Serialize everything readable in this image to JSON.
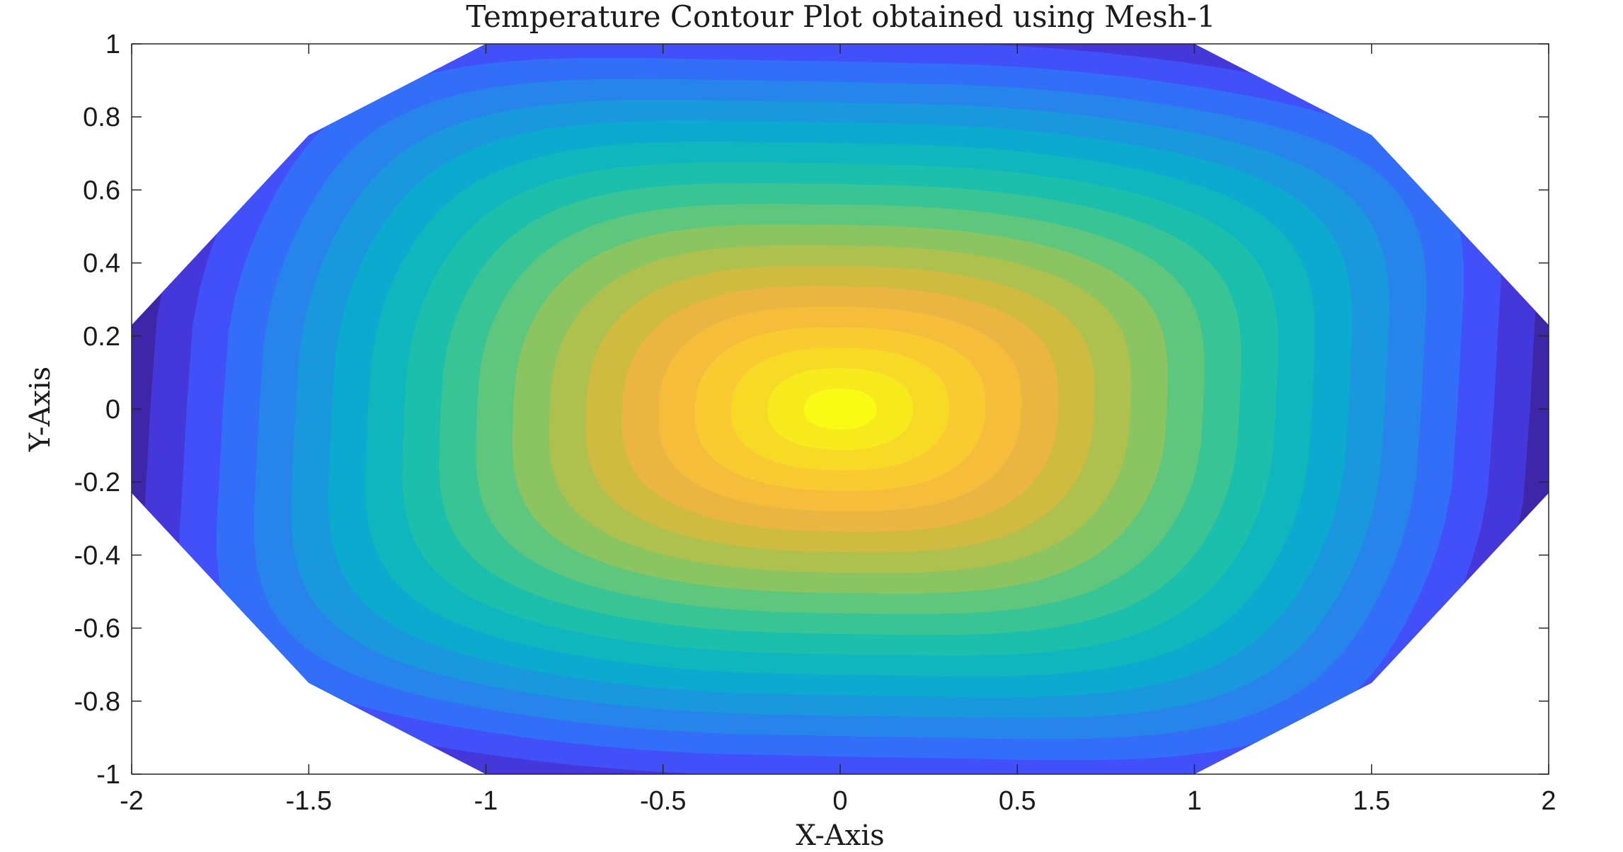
{
  "chart_data": {
    "type": "contour",
    "title": "Temperature Contour Plot obtained using Mesh-1",
    "xlabel": "X-Axis",
    "ylabel": "Y-Axis",
    "xlim": [
      -2,
      2
    ],
    "ylim": [
      -1,
      1
    ],
    "x_ticks": [
      -2,
      -1.5,
      -1,
      -0.5,
      0,
      0.5,
      1,
      1.5,
      2
    ],
    "y_ticks": [
      -1,
      -0.8,
      -0.6,
      -0.4,
      -0.2,
      0,
      0.2,
      0.4,
      0.6,
      0.8,
      1
    ],
    "x_tick_labels": [
      "-2",
      "-1.5",
      "-1",
      "-0.5",
      "0",
      "0.5",
      "1",
      "1.5",
      "2"
    ],
    "y_tick_labels": [
      "-1",
      "-0.8",
      "-0.6",
      "-0.4",
      "-0.2",
      "0",
      "0.2",
      "0.4",
      "0.6",
      "0.8",
      "1"
    ],
    "domain_boundary": [
      [
        -1,
        1
      ],
      [
        1,
        1
      ],
      [
        1.5,
        0.75
      ],
      [
        2,
        0.23
      ],
      [
        2,
        -0.23
      ],
      [
        1.5,
        -0.75
      ],
      [
        1,
        -1
      ],
      [
        -1,
        -1
      ],
      [
        -1.5,
        -0.75
      ],
      [
        -2,
        -0.23
      ],
      [
        -2,
        0.23
      ],
      [
        -1.5,
        0.75
      ]
    ],
    "peak_location": [
      0,
      0
    ],
    "contour_levels": 20,
    "colormap": "parula",
    "colormap_colors": [
      "#3e26a8",
      "#4743f8",
      "#2f73f8",
      "#1d93e0",
      "#07b0ca",
      "#1abfae",
      "#48c78a",
      "#8fc560",
      "#c4bd3f",
      "#f2b443",
      "#fbc833",
      "#f6e022",
      "#f9fb15"
    ],
    "grid": false,
    "legend": "none"
  }
}
